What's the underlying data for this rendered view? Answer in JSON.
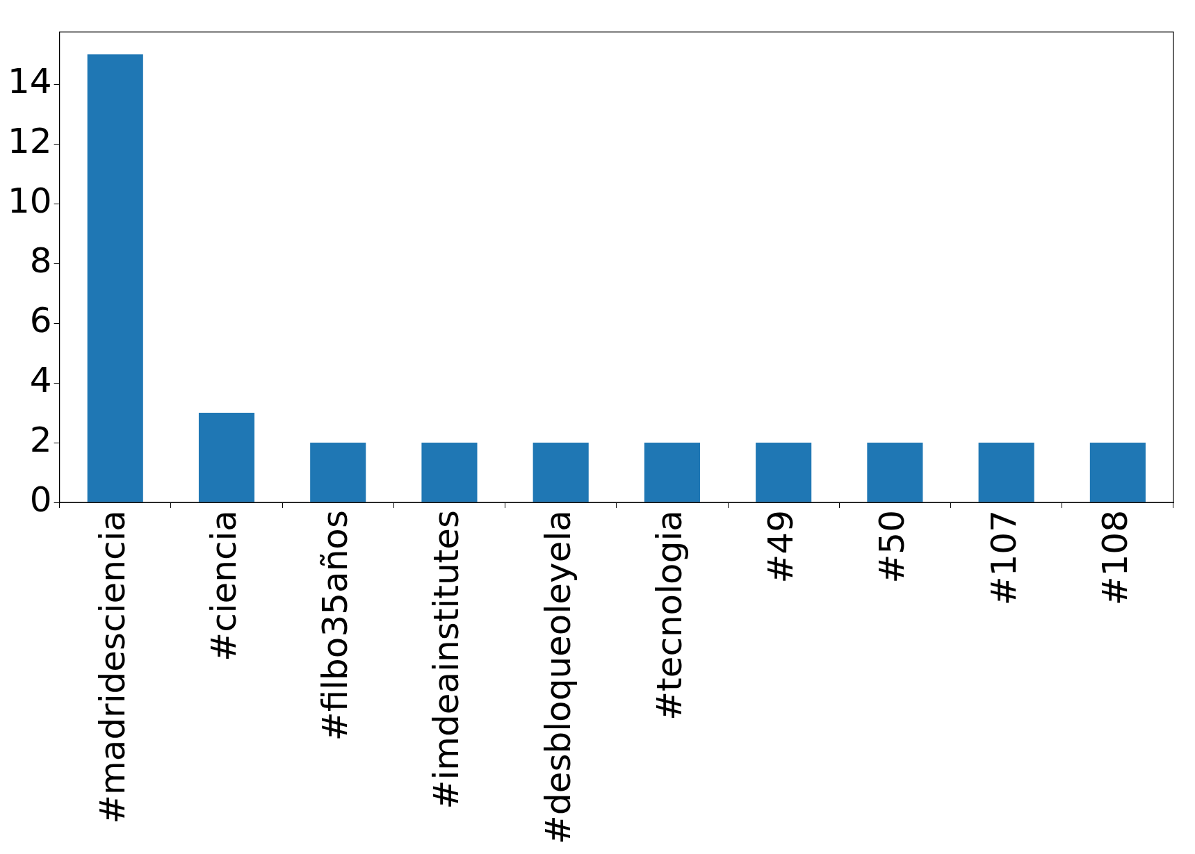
{
  "chart_data": {
    "type": "bar",
    "categories": [
      "#madridesciencia",
      "#ciencia",
      "#filbo35años",
      "#imdeainstitutes",
      "#desbloqueoleyela",
      "#tecnologia",
      "#49",
      "#50",
      "#107",
      "#108"
    ],
    "values": [
      15,
      3,
      2,
      2,
      2,
      2,
      2,
      2,
      2,
      2
    ],
    "color": "#1f77b4",
    "ylim": [
      0,
      15.75
    ],
    "yticks": [
      0,
      2,
      4,
      6,
      8,
      10,
      12,
      14
    ],
    "grid": false,
    "legend": false
  }
}
